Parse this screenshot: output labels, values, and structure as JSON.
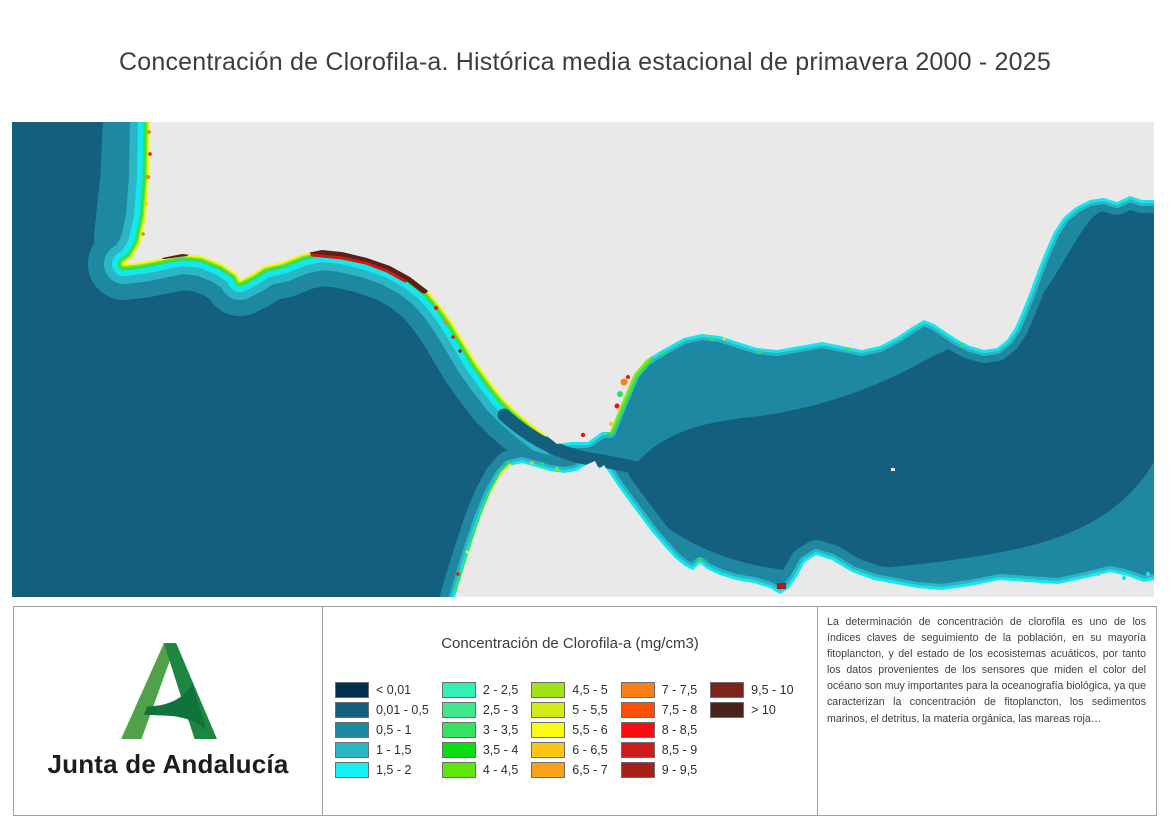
{
  "title": "Concentración de Clorofila-a. Histórica media estacional de primavera 2000 - 2025",
  "map": {
    "colors": {
      "land": "#e9e9e9",
      "ocean_deep": "#145f7e",
      "ocean_mid": "#1e87a1",
      "band_light_teal": "#2bb6c6",
      "band_cyan": "#14e8ee",
      "band_green": "#2ee05a",
      "band_yellow_green": "#8fe414",
      "band_yellow": "#f7f712",
      "band_red": "#f90c12",
      "band_maroon": "#5c2018"
    }
  },
  "footer": {
    "logo": {
      "label": "Junta de Andalucía",
      "colors": {
        "light_green": "#4fa14a",
        "dark_green": "#1d8742",
        "swoosh_green": "#0f7439"
      }
    },
    "legend": {
      "title": "Concentración de Clorofila-a (mg/cm3)",
      "columns": [
        {
          "items": [
            {
              "label": "< 0,01",
              "color": "#04314f"
            },
            {
              "label": "0,01 - 0,5",
              "color": "#135f7e"
            },
            {
              "label": "0,5 - 1",
              "color": "#1e87a1"
            },
            {
              "label": "1 - 1,5",
              "color": "#2bb6c6"
            },
            {
              "label": "1,5 - 2",
              "color": "#10f2f6"
            }
          ]
        },
        {
          "items": [
            {
              "label": "2 - 2,5",
              "color": "#35f0b5"
            },
            {
              "label": "2,5 - 3",
              "color": "#3fe98b"
            },
            {
              "label": "3 - 3,5",
              "color": "#34e360"
            },
            {
              "label": "3,5 - 4",
              "color": "#0add12"
            },
            {
              "label": "4 - 4,5",
              "color": "#5fe60d"
            }
          ]
        },
        {
          "items": [
            {
              "label": "4,5 - 5",
              "color": "#a0e214"
            },
            {
              "label": "5 - 5,5",
              "color": "#d2ea15"
            },
            {
              "label": "5,5 - 6",
              "color": "#fafa12"
            },
            {
              "label": "6 - 6,5",
              "color": "#fbc513"
            },
            {
              "label": "6,5 - 7",
              "color": "#faa11a"
            }
          ]
        },
        {
          "items": [
            {
              "label": "7 - 7,5",
              "color": "#fa7f17"
            },
            {
              "label": "7,5 - 8",
              "color": "#fc5106"
            },
            {
              "label": "8 - 8,5",
              "color": "#f90c12"
            },
            {
              "label": "8,5 - 9",
              "color": "#cd1c18"
            },
            {
              "label": "9 - 9,5",
              "color": "#a52019"
            }
          ]
        },
        {
          "items": [
            {
              "label": "9,5 - 10",
              "color": "#7c231c"
            },
            {
              "label": "> 10",
              "color": "#4b221a"
            }
          ]
        }
      ]
    },
    "description": "La determinación de concentración de clorofila es uno de los índices claves de seguimiento de la población, en su mayoría fitoplancton, y del estado de los ecosistemas acuáticos, por tanto los datos provenientes de los sensores que miden el color del océano son muy importantes para la oceanografía biológica, ya que caracterizan la concentración de fitoplancton, los sedimentos marinos, el detritus, la materia orgánica, las mareas roja…"
  }
}
